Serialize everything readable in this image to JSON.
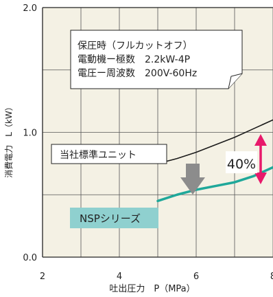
{
  "chart_data": {
    "type": "line",
    "xlabel": "吐出圧力　P（MPa）",
    "ylabel": "消費電力　L（kW）",
    "xlim": [
      2,
      8
    ],
    "ylim": [
      0.0,
      2.0
    ],
    "x_ticks": [
      "2",
      "4",
      "6",
      "8"
    ],
    "y_ticks": [
      "0.0",
      "1.0",
      "2.0"
    ],
    "grid": true,
    "series": [
      {
        "name": "当社標準ユニット",
        "color": "#1a1a1a",
        "x": [
          5.0,
          5.5,
          6.0,
          6.5,
          7.0,
          7.5,
          8.0
        ],
        "y": [
          0.75,
          0.79,
          0.84,
          0.9,
          0.96,
          1.03,
          1.1
        ]
      },
      {
        "name": "NSPシリーズ",
        "color": "#1fa89a",
        "x": [
          5.0,
          5.5,
          6.0,
          6.5,
          7.0,
          7.5,
          8.0
        ],
        "y": [
          0.45,
          0.5,
          0.54,
          0.57,
          0.6,
          0.65,
          0.72
        ]
      }
    ],
    "annotations": {
      "conditions": [
        "保圧時（フルカットオフ）",
        "電動機ー極数　2.2kW-4P",
        "電圧ー周波数　200V-60Hz"
      ],
      "reduction_label": "40%"
    },
    "colors": {
      "plot_bg": "#f4f1e4",
      "grid": "#555555",
      "accent_arrow": "#e8196b",
      "gray_arrow": "#8c8c8c",
      "nsp_label_bg": "#8fd0cf"
    }
  }
}
